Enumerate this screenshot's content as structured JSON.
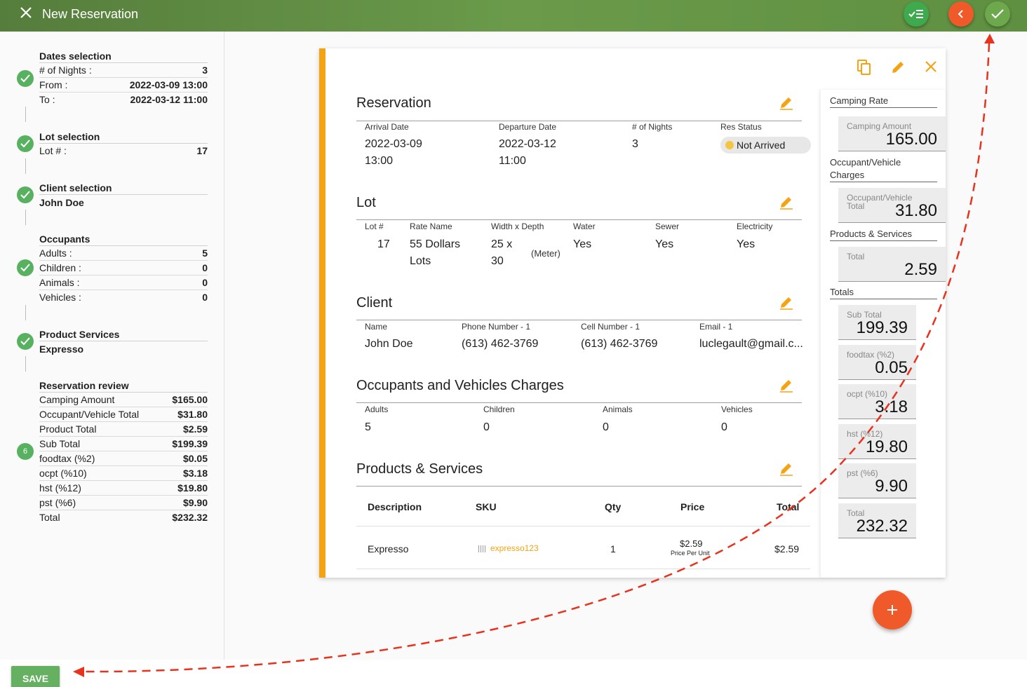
{
  "header": {
    "title": "New Reservation"
  },
  "sidebar": {
    "dates": {
      "title": "Dates selection",
      "nights_label": "# of Nights :",
      "nights": "3",
      "from_label": "From :",
      "from": "2022-03-09 13:00",
      "to_label": "To :",
      "to": "2022-03-12 11:00"
    },
    "lot": {
      "title": "Lot selection",
      "lot_label": "Lot # :",
      "lot": "17"
    },
    "client": {
      "title": "Client selection",
      "name": "John Doe"
    },
    "occupants": {
      "title": "Occupants",
      "adults_label": "Adults :",
      "adults": "5",
      "children_label": "Children :",
      "children": "0",
      "animals_label": "Animals :",
      "animals": "0",
      "vehicles_label": "Vehicles :",
      "vehicles": "0"
    },
    "products": {
      "title": "Product Services",
      "item": "Expresso"
    },
    "review": {
      "title": "Reservation review",
      "step_number": "6",
      "rows": [
        {
          "label": "Camping Amount",
          "value": "$165.00"
        },
        {
          "label": "Occupant/Vehicle Total",
          "value": "$31.80"
        },
        {
          "label": "Product Total",
          "value": "$2.59"
        },
        {
          "label": "Sub Total",
          "value": "$199.39"
        },
        {
          "label": "foodtax (%2)",
          "value": "$0.05"
        },
        {
          "label": "ocpt (%10)",
          "value": "$3.18"
        },
        {
          "label": "hst (%12)",
          "value": "$19.80"
        },
        {
          "label": "pst (%6)",
          "value": "$9.90"
        },
        {
          "label": "Total",
          "value": "$232.32"
        }
      ]
    }
  },
  "save_label": "SAVE",
  "card": {
    "reservation": {
      "title": "Reservation",
      "arrival_label": "Arrival Date",
      "arrival_date": "2022-03-09",
      "arrival_time": "13:00",
      "departure_label": "Departure Date",
      "departure_date": "2022-03-12",
      "departure_time": "11:00",
      "nights_label": "# of Nights",
      "nights": "3",
      "status_label": "Res Status",
      "status": "Not Arrived"
    },
    "lot": {
      "title": "Lot",
      "lot_label": "Lot #",
      "lot": "17",
      "rate_label": "Rate Name",
      "rate_line1": "55 Dollars",
      "rate_line2": "Lots",
      "size_label": "Width x Depth",
      "width": "25 x",
      "depth": "30",
      "unit": "(Meter)",
      "water_label": "Water",
      "water": "Yes",
      "sewer_label": "Sewer",
      "sewer": "Yes",
      "elec_label": "Electricity",
      "elec": "Yes"
    },
    "client": {
      "title": "Client",
      "name_label": "Name",
      "name": "John Doe",
      "phone_label": "Phone Number - 1",
      "phone": "(613) 462-3769",
      "cell_label": "Cell Number - 1",
      "cell": "(613) 462-3769",
      "email_label": "Email - 1",
      "email": "luclegault@gmail.c..."
    },
    "occupants": {
      "title": "Occupants and Vehicles Charges",
      "adults_label": "Adults",
      "adults": "5",
      "children_label": "Children",
      "children": "0",
      "animals_label": "Animals",
      "animals": "0",
      "vehicles_label": "Vehicles",
      "vehicles": "0"
    },
    "products": {
      "title": "Products & Services",
      "headers": {
        "description": "Description",
        "sku": "SKU",
        "qty": "Qty",
        "price": "Price",
        "total": "Total"
      },
      "row": {
        "description": "Expresso",
        "sku": "expresso123",
        "qty": "1",
        "price": "$2.59",
        "price_sub": "Price Per Unit",
        "total": "$2.59"
      }
    }
  },
  "summary": {
    "camping_head": "Camping Rate",
    "camping_label": "Camping Amount",
    "camping": "165.00",
    "occ_head": "Occupant/Vehicle Charges",
    "occ_label": "Occupant/Vehicle Total",
    "occ": "31.80",
    "prod_head": "Products & Services",
    "prod_label": "Total",
    "prod": "2.59",
    "totals_head": "Totals",
    "subtotal_label": "Sub Total",
    "subtotal": "199.39",
    "foodtax_label": "foodtax (%2)",
    "foodtax": "0.05",
    "ocpt_label": "ocpt (%10)",
    "ocpt": "3.18",
    "hst_label": "hst (%12)",
    "hst": "19.80",
    "pst_label": "pst (%6)",
    "pst": "9.90",
    "total_label": "Total",
    "total": "232.32"
  },
  "colors": {
    "accent": "#f5a312",
    "green": "#58b160",
    "orange": "#f05a2a",
    "annotation": "#e8321e"
  }
}
